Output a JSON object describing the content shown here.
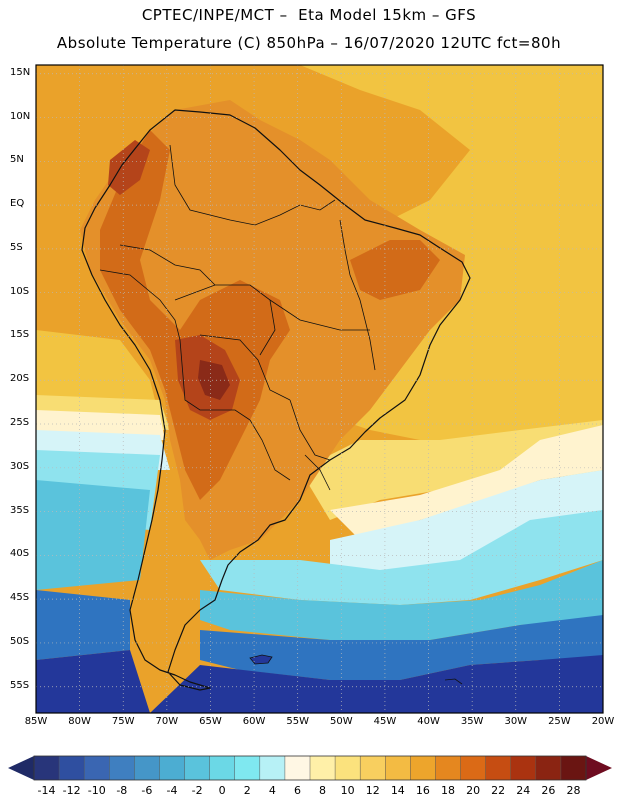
{
  "header": {
    "line1": "CPTEC/INPE/MCT –  Eta Model 15km – GFS",
    "line2": "Absolute Temperature (C) 850hPa – 16/07/2020 12UTC fct=80h"
  },
  "map": {
    "lat_labels": [
      "15N",
      "10N",
      "5N",
      "EQ",
      "5S",
      "10S",
      "15S",
      "20S",
      "25S",
      "30S",
      "35S",
      "40S",
      "45S",
      "50S",
      "55S"
    ],
    "lon_labels": [
      "85W",
      "80W",
      "75W",
      "70W",
      "65W",
      "60W",
      "55W",
      "50W",
      "45W",
      "40W",
      "35W",
      "30W",
      "25W",
      "20W"
    ],
    "lat_range_deg": [
      -58,
      16
    ],
    "lon_range_deg": [
      -85,
      -20
    ]
  },
  "colorbar": {
    "labels": [
      "-14",
      "-12",
      "-10",
      "-8",
      "-6",
      "-4",
      "-2",
      "0",
      "2",
      "4",
      "6",
      "8",
      "10",
      "12",
      "14",
      "16",
      "18",
      "20",
      "22",
      "24",
      "26",
      "28"
    ],
    "colors": [
      "#28357a",
      "#2f4fa0",
      "#3a66b2",
      "#3f7fc0",
      "#4596c8",
      "#4cadd2",
      "#5ac3dc",
      "#6bd8e6",
      "#7fe8f0",
      "#b7f1f6",
      "#fff7e4",
      "#fff0a8",
      "#fbe27d",
      "#f8cf5f",
      "#f3bb43",
      "#eda52c",
      "#e5871f",
      "#db6a16",
      "#c64d12",
      "#aa3310",
      "#8a2412",
      "#6a1512"
    ],
    "under_color": "#1f2a66",
    "over_color": "#6e0c20"
  },
  "fields": {
    "ocean_south_deep": "#23379a",
    "ocean_south_mid": "#2f74c0",
    "ocean_south_light": "#5ac3dc",
    "ocean_cyan": "#8fe3ee",
    "ocean_pale": "#d6f4f8",
    "ocean_cream": "#fff3cf",
    "ocean_yellow": "#f8dd73",
    "ocean_gold": "#f2c441",
    "tropical_orange": "#eaa22a",
    "land_orange": "#e4902a",
    "land_dark": "#d26b18",
    "land_hot": "#b4441a",
    "land_core": "#8a2a18",
    "coast_line": "#111111",
    "graticule": "#b9b9b9"
  }
}
